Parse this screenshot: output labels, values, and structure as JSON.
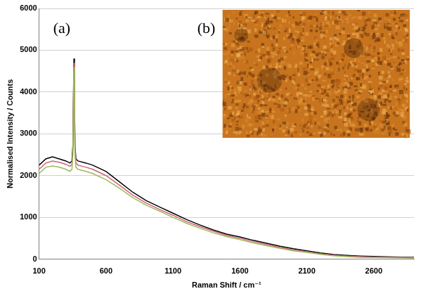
{
  "chart_data": {
    "type": "line",
    "panel_labels": [
      "(a)",
      "(b)"
    ],
    "x_label": "Raman Shift / cm⁻¹",
    "y_label": "Normalised Intensity / Counts",
    "x": [
      100,
      150,
      200,
      250,
      300,
      330,
      345,
      352,
      356,
      360,
      364,
      368,
      375,
      390,
      450,
      500,
      600,
      700,
      800,
      900,
      1000,
      1100,
      1200,
      1300,
      1400,
      1500,
      1600,
      1700,
      1800,
      1900,
      2000,
      2100,
      2200,
      2300,
      2400,
      2500,
      2600,
      2700,
      2800,
      2900
    ],
    "series": [
      {
        "color": "#000000",
        "values": [
          2250,
          2400,
          2450,
          2400,
          2350,
          2300,
          2350,
          2700,
          3800,
          4800,
          3800,
          2700,
          2400,
          2350,
          2300,
          2250,
          2100,
          1850,
          1600,
          1400,
          1250,
          1100,
          950,
          820,
          700,
          600,
          530,
          450,
          380,
          310,
          250,
          200,
          150,
          110,
          90,
          75,
          65,
          55,
          50,
          45
        ]
      },
      {
        "color": "#d0607a",
        "values": [
          2150,
          2300,
          2350,
          2320,
          2270,
          2220,
          2270,
          2600,
          3700,
          4700,
          3700,
          2600,
          2300,
          2250,
          2200,
          2150,
          2000,
          1770,
          1530,
          1340,
          1190,
          1050,
          900,
          780,
          670,
          570,
          500,
          420,
          350,
          280,
          220,
          180,
          130,
          95,
          75,
          60,
          50,
          45,
          40,
          35
        ]
      },
      {
        "color": "#9bbb59",
        "values": [
          2050,
          2200,
          2230,
          2200,
          2150,
          2100,
          2150,
          2500,
          3600,
          4600,
          3600,
          2500,
          2200,
          2150,
          2100,
          2050,
          1900,
          1700,
          1470,
          1290,
          1150,
          1000,
          860,
          740,
          630,
          540,
          470,
          390,
          320,
          260,
          200,
          160,
          115,
          80,
          60,
          45,
          40,
          35,
          30,
          25
        ]
      }
    ],
    "xlim": [
      100,
      2900
    ],
    "ylim": [
      0,
      6000
    ],
    "xticks": [
      100,
      600,
      1100,
      1600,
      2100,
      2600
    ],
    "yticks": [
      0,
      1000,
      2000,
      3000,
      4000,
      5000,
      6000
    ],
    "grid": true
  }
}
